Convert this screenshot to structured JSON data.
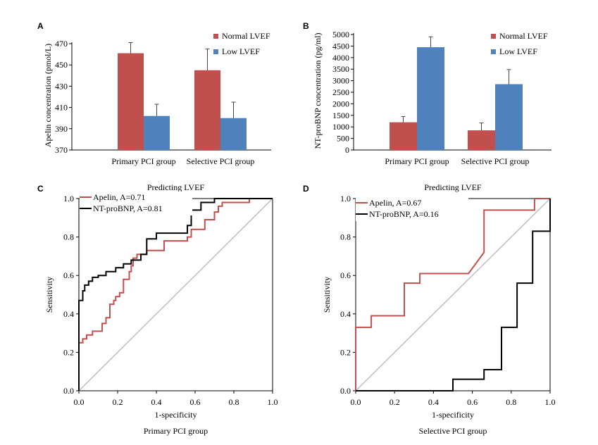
{
  "chart_data": [
    {
      "panel": "A",
      "type": "bar",
      "title": "",
      "ylabel": "Apelin concentration (pmol/L)",
      "xlabel": "",
      "ylim": [
        370,
        470
      ],
      "yticks": [
        370,
        390,
        410,
        430,
        450,
        470
      ],
      "categories": [
        "Primary PCI group",
        "Selective PCI group"
      ],
      "legend_position": "top-right",
      "series": [
        {
          "name": "Normal LVEF",
          "color": "#c0504d",
          "values": [
            461,
            445
          ],
          "errors": [
            10,
            20
          ]
        },
        {
          "name": "Low LVEF",
          "color": "#4f81bd",
          "values": [
            402,
            400
          ],
          "errors": [
            11,
            15
          ]
        }
      ]
    },
    {
      "panel": "B",
      "type": "bar",
      "title": "",
      "ylabel": "NT-proBNP concentration (pg/ml)",
      "xlabel": "",
      "ylim": [
        0,
        5000
      ],
      "yticks": [
        0,
        500,
        1000,
        1500,
        2000,
        2500,
        3000,
        3500,
        4000,
        4500,
        5000
      ],
      "categories": [
        "Primary PCI group",
        "Selective PCI group"
      ],
      "legend_position": "top-right",
      "series": [
        {
          "name": "Normal LVEF",
          "color": "#c0504d",
          "values": [
            1200,
            850
          ],
          "errors": [
            250,
            320
          ]
        },
        {
          "name": "Low LVEF",
          "color": "#4f81bd",
          "values": [
            4450,
            2850
          ],
          "errors": [
            450,
            630
          ]
        }
      ]
    },
    {
      "panel": "C",
      "type": "line",
      "title": "Predicting LVEF",
      "xlabel": "1-specificity",
      "ylabel": "Sensitivity",
      "subtitle_below": "Primary PCI group",
      "xlim": [
        0,
        1
      ],
      "ylim": [
        0,
        1
      ],
      "xticks": [
        "0.0",
        "0.2",
        "0.4",
        "0.6",
        "0.8",
        "1.0"
      ],
      "yticks": [
        "0.0",
        "0.2",
        "0.4",
        "0.6",
        "0.8",
        "1.0"
      ],
      "legend_position": "top-left",
      "series": [
        {
          "name": "Apelin, A=0.71",
          "color": "#c0504d",
          "x": [
            0,
            0,
            0.02,
            0.02,
            0.04,
            0.04,
            0.07,
            0.07,
            0.12,
            0.12,
            0.14,
            0.14,
            0.16,
            0.16,
            0.18,
            0.18,
            0.19,
            0.19,
            0.21,
            0.21,
            0.23,
            0.23,
            0.26,
            0.26,
            0.27,
            0.27,
            0.28,
            0.28,
            0.3,
            0.3,
            0.35,
            0.35,
            0.44,
            0.44,
            0.56,
            0.56,
            0.58,
            0.58,
            0.65,
            0.65,
            0.7,
            0.7,
            0.72,
            0.72,
            0.74,
            0.74,
            0.77,
            0.77,
            0.88,
            0.88,
            1.0
          ],
          "y": [
            0,
            0.25,
            0.25,
            0.27,
            0.27,
            0.29,
            0.29,
            0.31,
            0.31,
            0.35,
            0.35,
            0.38,
            0.38,
            0.45,
            0.45,
            0.47,
            0.47,
            0.49,
            0.49,
            0.51,
            0.51,
            0.58,
            0.58,
            0.62,
            0.62,
            0.65,
            0.65,
            0.69,
            0.69,
            0.71,
            0.71,
            0.73,
            0.73,
            0.78,
            0.78,
            0.8,
            0.8,
            0.84,
            0.84,
            0.89,
            0.89,
            0.93,
            0.93,
            0.96,
            0.96,
            0.98,
            0.98,
            0.98,
            0.98,
            1.0,
            1.0
          ]
        },
        {
          "name": "NT-proBNP, A=0.81",
          "color": "#000000",
          "x": [
            0,
            0,
            0.02,
            0.02,
            0.03,
            0.03,
            0.05,
            0.05,
            0.07,
            0.07,
            0.1,
            0.1,
            0.14,
            0.14,
            0.19,
            0.19,
            0.23,
            0.23,
            0.27,
            0.27,
            0.32,
            0.32,
            0.35,
            0.35,
            0.4,
            0.4,
            0.56,
            0.56,
            0.58,
            0.58,
            0.63,
            0.63,
            0.7,
            0.7,
            1.0
          ],
          "y": [
            0,
            0.47,
            0.47,
            0.52,
            0.52,
            0.55,
            0.55,
            0.57,
            0.57,
            0.59,
            0.59,
            0.6,
            0.6,
            0.62,
            0.62,
            0.64,
            0.64,
            0.66,
            0.66,
            0.68,
            0.68,
            0.71,
            0.71,
            0.79,
            0.79,
            0.82,
            0.82,
            0.86,
            0.86,
            0.94,
            0.94,
            0.98,
            0.98,
            1.0,
            1.0
          ]
        },
        {
          "name": "",
          "color": "#bfbfbf",
          "x": [
            0,
            1
          ],
          "y": [
            0,
            1
          ]
        }
      ]
    },
    {
      "panel": "D",
      "type": "line",
      "title": "Predicting LVEF",
      "xlabel": "1-specificity",
      "ylabel": "Sensitivity",
      "subtitle_below": "Selective PCI group",
      "xlim": [
        0,
        1
      ],
      "ylim": [
        0,
        1
      ],
      "xticks": [
        "0.0",
        "0.2",
        "0.4",
        "0.6",
        "0.8",
        "1.0"
      ],
      "yticks": [
        "0.0",
        "0.2",
        "0.4",
        "0.6",
        "0.8",
        "1.0"
      ],
      "legend_position": "top-left",
      "series": [
        {
          "name": "Apelin, A=0.67",
          "color": "#c0504d",
          "x": [
            0,
            0,
            0.08,
            0.08,
            0.25,
            0.25,
            0.33,
            0.33,
            0.58,
            0.66,
            0.66,
            0.92,
            0.92,
            1.0
          ],
          "y": [
            0,
            0.33,
            0.33,
            0.39,
            0.39,
            0.56,
            0.56,
            0.61,
            0.61,
            0.72,
            0.94,
            0.94,
            1.0,
            1.0
          ]
        },
        {
          "name": "NT-proBNP, A=0.16",
          "color": "#000000",
          "x": [
            0,
            0.5,
            0.5,
            0.66,
            0.66,
            0.75,
            0.75,
            0.83,
            0.83,
            0.91,
            0.91,
            1.0,
            1.0
          ],
          "y": [
            0,
            0,
            0.06,
            0.06,
            0.11,
            0.11,
            0.33,
            0.33,
            0.56,
            0.56,
            0.83,
            0.83,
            1.0
          ]
        },
        {
          "name": "",
          "color": "#bfbfbf",
          "x": [
            0,
            1
          ],
          "y": [
            0,
            1
          ]
        }
      ]
    }
  ]
}
